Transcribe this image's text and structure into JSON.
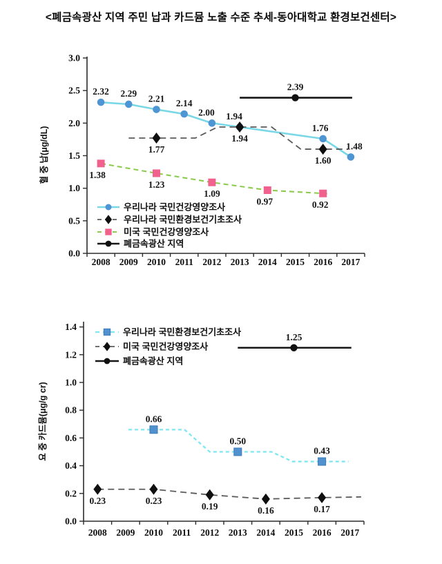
{
  "title": "<폐금속광산 지역 주민 납과 카드뮴 노출 수준 추세-동아대학교 환경보건센터>",
  "chart_data": [
    {
      "type": "line",
      "title": "",
      "xlabel": "",
      "ylabel": "혈 중 납(μg/dL)",
      "ylim": [
        0.0,
        3.0
      ],
      "y_tick_labels": [
        "3.0",
        "2.5",
        "2.0",
        "1.5",
        "1.0",
        "0.5",
        "0.0"
      ],
      "x_tick_labels": [
        "2008",
        "2009",
        "2010",
        "2011",
        "2012",
        "2013",
        "2014",
        "2015",
        "2016",
        "2017"
      ],
      "grid": false,
      "legend_position": "lower-left",
      "series": [
        {
          "name": "우리나라 국민건강영양조사",
          "marker": "circle",
          "marker_color": "#4e95d4",
          "marker_size": 5.3,
          "line_color": "#7ad7e6",
          "line_style": "solid",
          "line_width": 2.6,
          "points": [
            {
              "year": 2008,
              "value": 2.32,
              "label": "2.32",
              "label_pos": "above"
            },
            {
              "year": 2009,
              "value": 2.29,
              "label": "2.29",
              "label_pos": "above"
            },
            {
              "year": 2010,
              "value": 2.21,
              "label": "2.21",
              "label_pos": "above"
            },
            {
              "year": 2011,
              "value": 2.14,
              "label": "2.14",
              "label_pos": "above"
            },
            {
              "year": 2012,
              "value": 2.0,
              "label": "2.00",
              "label_pos": "above",
              "label_dx": -8
            },
            {
              "year": 2013,
              "value": 1.94,
              "label": "1.94",
              "label_pos": "above",
              "label_dx": -8
            },
            {
              "year": 2016,
              "value": 1.76,
              "label": "1.76",
              "label_pos": "above",
              "label_dx": -4
            },
            {
              "year": 2017,
              "value": 1.48,
              "label": "1.48",
              "label_pos": "above",
              "label_dx": 5
            }
          ]
        },
        {
          "name": "우리나라 국민환경보건기초조사",
          "marker": "diamond",
          "marker_color": "#0f0f0f",
          "marker_size": 7,
          "line_color": "#5a5a5a",
          "line_style": "dashed",
          "dash": "9 6",
          "line_width": 1.8,
          "path": [
            [
              2009.0,
              1.77
            ],
            [
              2011.4,
              1.77
            ],
            [
              2012.2,
              1.94
            ],
            [
              2014.15,
              1.94
            ],
            [
              2015.2,
              1.6
            ],
            [
              2016.9,
              1.6
            ]
          ],
          "points": [
            {
              "year": 2010,
              "value": 1.77,
              "label": "1.77",
              "label_pos": "below"
            },
            {
              "year": 2013,
              "value": 1.94,
              "label": "1.94",
              "label_pos": "below"
            },
            {
              "year": 2016,
              "value": 1.6,
              "label": "1.60",
              "label_pos": "below"
            }
          ]
        },
        {
          "name": "미국 국민건강영양조사",
          "marker": "square",
          "marker_color": "#f0618e",
          "marker_size": 11,
          "line_color": "#8ccb4e",
          "line_style": "dashed",
          "dash": "7 5",
          "line_width": 2.1,
          "path": [
            [
              2008,
              1.38
            ],
            [
              2010,
              1.23
            ],
            [
              2012,
              1.09
            ],
            [
              2014,
              0.97
            ],
            [
              2016,
              0.92
            ],
            [
              2016.15,
              0.918
            ]
          ],
          "points": [
            {
              "year": 2008,
              "value": 1.38,
              "label": "1.38",
              "label_pos": "below",
              "label_dx": -5
            },
            {
              "year": 2010,
              "value": 1.23,
              "label": "1.23",
              "label_pos": "below"
            },
            {
              "year": 2012,
              "value": 1.09,
              "label": "1.09",
              "label_pos": "below"
            },
            {
              "year": 2014,
              "value": 0.97,
              "label": "0.97",
              "label_pos": "below",
              "label_dx": -4
            },
            {
              "year": 2016,
              "value": 0.92,
              "label": "0.92",
              "label_pos": "below",
              "label_dx": -4
            }
          ]
        },
        {
          "name": "폐금속광산 지역",
          "marker": "circle",
          "marker_color": "#111111",
          "marker_size": 5.2,
          "line_color": "#161616",
          "line_style": "solid",
          "line_width": 2.6,
          "path": [
            [
              2013,
              2.39
            ],
            [
              2017.05,
              2.39
            ]
          ],
          "points": [
            {
              "year": 2015,
              "value": 2.39,
              "label": "2.39",
              "label_pos": "above"
            }
          ]
        }
      ]
    },
    {
      "type": "line",
      "title": "",
      "xlabel": "",
      "ylabel": "요 중 카드뮴(μg/g cr)",
      "ylim": [
        0.0,
        1.4
      ],
      "y_tick_labels": [
        "1.4",
        "1.2",
        "1.0",
        "0.8",
        "0.6",
        "0.4",
        "0.2",
        "0.0"
      ],
      "x_tick_labels": [
        "2008",
        "2009",
        "2010",
        "2011",
        "2012",
        "2013",
        "2014",
        "2015",
        "2016",
        "2017"
      ],
      "grid": false,
      "legend_position": "upper-left",
      "series": [
        {
          "name": "우리나라 국민환경보건기초조사",
          "marker": "square",
          "marker_color": "#5091ce",
          "marker_stroke": "#3c7ab8",
          "marker_size": 11,
          "line_color": "#7de8ef",
          "line_style": "dashed",
          "dash": "5 4",
          "line_width": 2.3,
          "path": [
            [
              2009.1,
              0.66
            ],
            [
              2011.1,
              0.66
            ],
            [
              2012.0,
              0.5
            ],
            [
              2014.2,
              0.5
            ],
            [
              2014.95,
              0.43
            ],
            [
              2016.95,
              0.43
            ]
          ],
          "points": [
            {
              "year": 2010,
              "value": 0.66,
              "label": "0.66",
              "label_pos": "above"
            },
            {
              "year": 2013,
              "value": 0.5,
              "label": "0.50",
              "label_pos": "above"
            },
            {
              "year": 2016,
              "value": 0.43,
              "label": "0.43",
              "label_pos": "above"
            }
          ]
        },
        {
          "name": "미국 국민건강영양조사",
          "marker": "diamond",
          "marker_color": "#0f0f0f",
          "marker_size": 7,
          "line_color": "#5a5a5a",
          "line_style": "dashed",
          "dash": "9 6",
          "line_width": 1.8,
          "path": [
            [
              2008,
              0.23
            ],
            [
              2010,
              0.23
            ],
            [
              2012,
              0.19
            ],
            [
              2014,
              0.16
            ],
            [
              2016,
              0.17
            ],
            [
              2017.4,
              0.175
            ]
          ],
          "points": [
            {
              "year": 2008,
              "value": 0.23,
              "label": "0.23",
              "label_pos": "below"
            },
            {
              "year": 2010,
              "value": 0.23,
              "label": "0.23",
              "label_pos": "below"
            },
            {
              "year": 2012,
              "value": 0.19,
              "label": "0.19",
              "label_pos": "below"
            },
            {
              "year": 2014,
              "value": 0.16,
              "label": "0.16",
              "label_pos": "below"
            },
            {
              "year": 2016,
              "value": 0.17,
              "label": "0.17",
              "label_pos": "below"
            }
          ]
        },
        {
          "name": "폐금속광산 지역",
          "marker": "circle",
          "marker_color": "#111111",
          "marker_size": 5.2,
          "line_color": "#161616",
          "line_style": "solid",
          "line_width": 2.6,
          "path": [
            [
              2013,
              1.25
            ],
            [
              2017.05,
              1.25
            ]
          ],
          "points": [
            {
              "year": 2015,
              "value": 1.25,
              "label": "1.25",
              "label_pos": "above"
            }
          ]
        }
      ]
    }
  ]
}
